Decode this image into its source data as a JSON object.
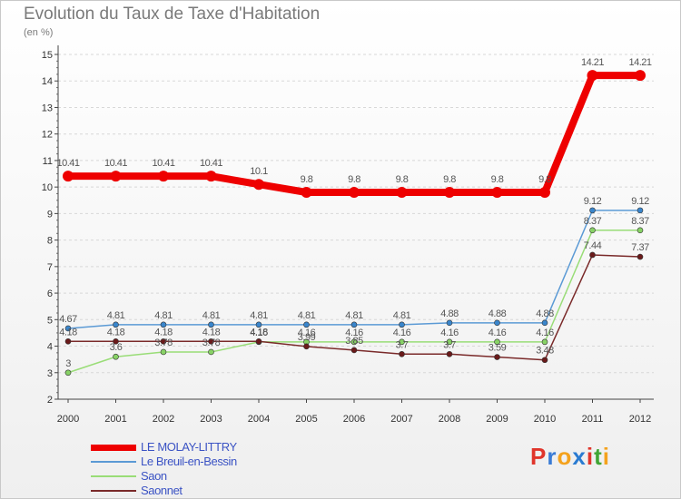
{
  "title": "Evolution du Taux de Taxe d'Habitation",
  "unit": "(en %)",
  "logo": {
    "text": [
      "P",
      "r",
      "o",
      "x",
      "i",
      "t",
      "i"
    ],
    "colors": [
      "#e0352b",
      "#3a7bd5",
      "#f4a21d",
      "#2a7bd1",
      "#e0352b",
      "#41a535",
      "#f4a21d"
    ]
  },
  "chart_data": {
    "type": "line",
    "categories": [
      "2000",
      "2001",
      "2002",
      "2003",
      "2004",
      "2005",
      "2006",
      "2007",
      "2008",
      "2009",
      "2010",
      "2011",
      "2012"
    ],
    "ylim": [
      2,
      15
    ],
    "yticks": [
      "2",
      "3",
      "4",
      "5",
      "6",
      "7",
      "8",
      "9",
      "10",
      "11",
      "12",
      "13",
      "14",
      "15"
    ],
    "series": [
      {
        "name": "LE MOLAY-LITTRY",
        "color": "#ee0000",
        "width": 8,
        "values": [
          10.41,
          10.41,
          10.41,
          10.41,
          10.1,
          9.8,
          9.8,
          9.8,
          9.8,
          9.8,
          9.8,
          14.21,
          14.21
        ],
        "labels": [
          "10.41",
          "10.41",
          "10.41",
          "10.41",
          "10.1",
          "9.8",
          "9.8",
          "9.8",
          "9.8",
          "9.8",
          "9.8",
          "14.21",
          "14.21"
        ]
      },
      {
        "name": "Le Breuil-en-Bessin",
        "color": "#5b9ad5",
        "dot": "#3a86cc",
        "width": 1.5,
        "values": [
          4.67,
          4.81,
          4.81,
          4.81,
          4.81,
          4.81,
          4.81,
          4.81,
          4.88,
          4.88,
          4.88,
          9.12,
          9.12
        ],
        "labels": [
          "4.67",
          "4.81",
          "4.81",
          "4.81",
          "4.81",
          "4.81",
          "4.81",
          "4.81",
          "4.88",
          "4.88",
          "4.88",
          "9.12",
          "9.12"
        ]
      },
      {
        "name": "Saon",
        "color": "#99dd77",
        "dot": "#88d266",
        "width": 1.5,
        "values": [
          3,
          3.6,
          3.78,
          3.78,
          4.16,
          4.16,
          4.16,
          4.16,
          4.16,
          4.16,
          4.16,
          8.37,
          8.37
        ],
        "labels": [
          "3",
          "3.6",
          "3.78",
          "3.78",
          "4.16",
          "4.16",
          "4.16",
          "4.16",
          "4.16",
          "4.16",
          "4.16",
          "8.37",
          "8.37"
        ]
      },
      {
        "name": "Saonnet",
        "color": "#7a2a2a",
        "dot": "#6a1a1a",
        "width": 1.5,
        "values": [
          4.18,
          4.18,
          4.18,
          4.18,
          4.18,
          3.99,
          3.85,
          3.7,
          3.7,
          3.59,
          3.48,
          7.44,
          7.37
        ],
        "labels": [
          "4.18",
          "4.18",
          "4.18",
          "4.18",
          "4.18",
          "3.99",
          "3.85",
          "3.7",
          "3.7",
          "3.59",
          "3.48",
          "7.44",
          "7.37"
        ]
      }
    ]
  }
}
